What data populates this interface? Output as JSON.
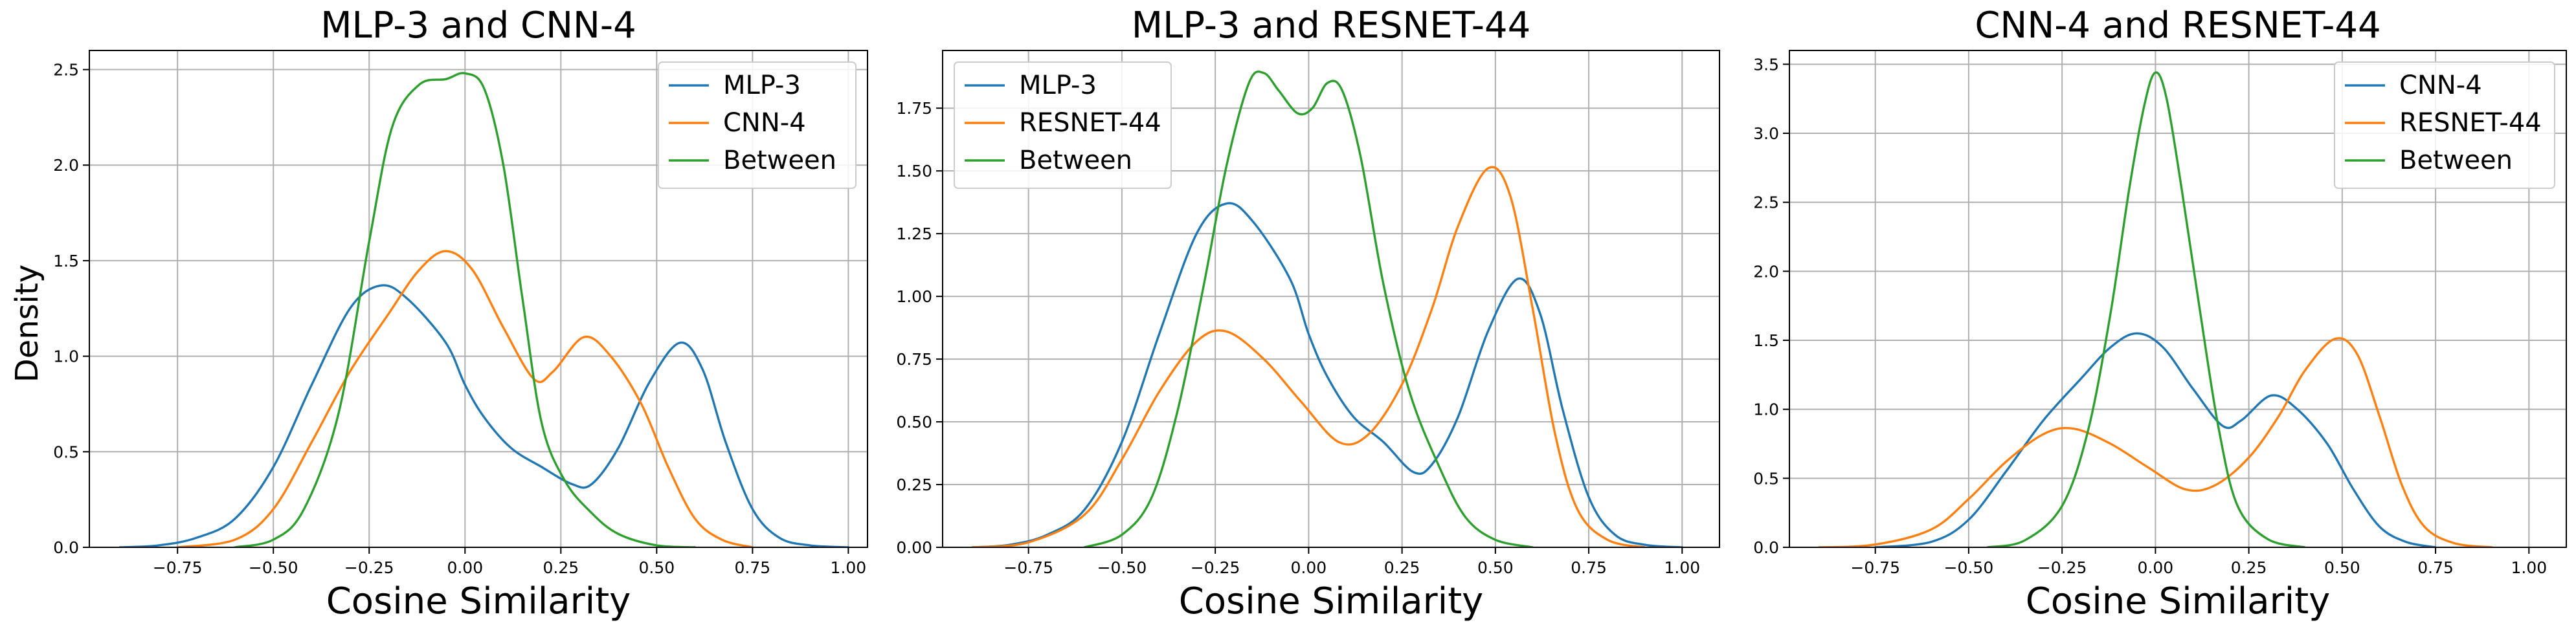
{
  "figure": {
    "ylabel": "Density",
    "xlabel": "Cosine Similarity"
  },
  "colors": {
    "blue": "#1f77b4",
    "orange": "#ff7f0e",
    "green": "#2ca02c",
    "grid": "#b0b0b0",
    "axis": "#000000"
  },
  "chart_data": [
    {
      "type": "line",
      "title": "MLP-3 and CNN-4",
      "xlabel": "Cosine Similarity",
      "ylabel": "Density",
      "xlim": [
        -0.98,
        1.05
      ],
      "ylim": [
        0,
        2.6
      ],
      "xticks": [
        -0.75,
        -0.5,
        -0.25,
        0.0,
        0.25,
        0.5,
        0.75,
        1.0
      ],
      "xtick_labels": [
        "−0.75",
        "−0.50",
        "−0.25",
        "0.00",
        "0.25",
        "0.50",
        "0.75",
        "1.00"
      ],
      "yticks": [
        0,
        0.5,
        1.0,
        1.5,
        2.0,
        2.5
      ],
      "ytick_labels": [
        "0.0",
        "0.5",
        "1.0",
        "1.5",
        "2.0",
        "2.5"
      ],
      "grid": true,
      "legend_position": "upper right",
      "series": [
        {
          "name": "MLP-3",
          "color": "blue",
          "points": [
            [
              -0.9,
              0
            ],
            [
              -0.8,
              0.01
            ],
            [
              -0.7,
              0.05
            ],
            [
              -0.6,
              0.15
            ],
            [
              -0.5,
              0.42
            ],
            [
              -0.4,
              0.85
            ],
            [
              -0.3,
              1.25
            ],
            [
              -0.22,
              1.37
            ],
            [
              -0.15,
              1.3
            ],
            [
              -0.05,
              1.07
            ],
            [
              0.0,
              0.85
            ],
            [
              0.05,
              0.68
            ],
            [
              0.12,
              0.52
            ],
            [
              0.2,
              0.42
            ],
            [
              0.28,
              0.33
            ],
            [
              0.33,
              0.33
            ],
            [
              0.4,
              0.52
            ],
            [
              0.48,
              0.86
            ],
            [
              0.56,
              1.07
            ],
            [
              0.62,
              0.93
            ],
            [
              0.68,
              0.55
            ],
            [
              0.75,
              0.2
            ],
            [
              0.82,
              0.05
            ],
            [
              0.9,
              0.01
            ],
            [
              1.0,
              0
            ]
          ]
        },
        {
          "name": "CNN-4",
          "color": "orange",
          "points": [
            [
              -0.75,
              0
            ],
            [
              -0.6,
              0.04
            ],
            [
              -0.5,
              0.2
            ],
            [
              -0.4,
              0.55
            ],
            [
              -0.3,
              0.92
            ],
            [
              -0.2,
              1.22
            ],
            [
              -0.12,
              1.45
            ],
            [
              -0.05,
              1.55
            ],
            [
              0.02,
              1.45
            ],
            [
              0.1,
              1.15
            ],
            [
              0.18,
              0.88
            ],
            [
              0.23,
              0.92
            ],
            [
              0.31,
              1.1
            ],
            [
              0.38,
              1.0
            ],
            [
              0.46,
              0.75
            ],
            [
              0.53,
              0.42
            ],
            [
              0.6,
              0.15
            ],
            [
              0.67,
              0.04
            ],
            [
              0.75,
              0
            ]
          ]
        },
        {
          "name": "Between",
          "color": "green",
          "points": [
            [
              -0.6,
              0
            ],
            [
              -0.5,
              0.04
            ],
            [
              -0.42,
              0.2
            ],
            [
              -0.33,
              0.7
            ],
            [
              -0.25,
              1.6
            ],
            [
              -0.19,
              2.2
            ],
            [
              -0.12,
              2.42
            ],
            [
              -0.05,
              2.45
            ],
            [
              0.0,
              2.48
            ],
            [
              0.05,
              2.4
            ],
            [
              0.1,
              2.0
            ],
            [
              0.15,
              1.3
            ],
            [
              0.2,
              0.65
            ],
            [
              0.26,
              0.35
            ],
            [
              0.33,
              0.18
            ],
            [
              0.4,
              0.07
            ],
            [
              0.5,
              0.01
            ],
            [
              0.6,
              0
            ]
          ]
        }
      ]
    },
    {
      "type": "line",
      "title": "MLP-3 and RESNET-44",
      "xlabel": "Cosine Similarity",
      "ylabel": "",
      "xlim": [
        -0.98,
        1.1
      ],
      "ylim": [
        0,
        1.98
      ],
      "xticks": [
        -0.75,
        -0.5,
        -0.25,
        0.0,
        0.25,
        0.5,
        0.75,
        1.0
      ],
      "xtick_labels": [
        "−0.75",
        "−0.50",
        "−0.25",
        "0.00",
        "0.25",
        "0.50",
        "0.75",
        "1.00"
      ],
      "yticks": [
        0,
        0.25,
        0.5,
        0.75,
        1.0,
        1.25,
        1.5,
        1.75
      ],
      "ytick_labels": [
        "0.00",
        "0.25",
        "0.50",
        "0.75",
        "1.00",
        "1.25",
        "1.50",
        "1.75"
      ],
      "grid": true,
      "legend_position": "upper left",
      "series": [
        {
          "name": "MLP-3",
          "color": "blue",
          "points": [
            [
              -0.9,
              0
            ],
            [
              -0.8,
              0.01
            ],
            [
              -0.7,
              0.05
            ],
            [
              -0.6,
              0.15
            ],
            [
              -0.5,
              0.42
            ],
            [
              -0.4,
              0.85
            ],
            [
              -0.3,
              1.25
            ],
            [
              -0.22,
              1.37
            ],
            [
              -0.15,
              1.3
            ],
            [
              -0.05,
              1.07
            ],
            [
              0.0,
              0.85
            ],
            [
              0.05,
              0.68
            ],
            [
              0.12,
              0.52
            ],
            [
              0.2,
              0.42
            ],
            [
              0.28,
              0.3
            ],
            [
              0.33,
              0.33
            ],
            [
              0.4,
              0.52
            ],
            [
              0.48,
              0.86
            ],
            [
              0.56,
              1.07
            ],
            [
              0.62,
              0.93
            ],
            [
              0.68,
              0.55
            ],
            [
              0.75,
              0.2
            ],
            [
              0.82,
              0.05
            ],
            [
              0.9,
              0.01
            ],
            [
              1.0,
              0
            ]
          ]
        },
        {
          "name": "RESNET-44",
          "color": "orange",
          "points": [
            [
              -0.9,
              0
            ],
            [
              -0.75,
              0.02
            ],
            [
              -0.6,
              0.13
            ],
            [
              -0.5,
              0.35
            ],
            [
              -0.4,
              0.62
            ],
            [
              -0.3,
              0.82
            ],
            [
              -0.22,
              0.86
            ],
            [
              -0.12,
              0.75
            ],
            [
              -0.02,
              0.58
            ],
            [
              0.08,
              0.42
            ],
            [
              0.16,
              0.45
            ],
            [
              0.25,
              0.65
            ],
            [
              0.33,
              0.95
            ],
            [
              0.4,
              1.28
            ],
            [
              0.48,
              1.51
            ],
            [
              0.54,
              1.4
            ],
            [
              0.6,
              0.95
            ],
            [
              0.66,
              0.45
            ],
            [
              0.72,
              0.15
            ],
            [
              0.8,
              0.03
            ],
            [
              0.9,
              0
            ]
          ]
        },
        {
          "name": "Between",
          "color": "green",
          "points": [
            [
              -0.6,
              0
            ],
            [
              -0.5,
              0.05
            ],
            [
              -0.42,
              0.2
            ],
            [
              -0.35,
              0.55
            ],
            [
              -0.28,
              1.05
            ],
            [
              -0.22,
              1.52
            ],
            [
              -0.16,
              1.85
            ],
            [
              -0.12,
              1.89
            ],
            [
              -0.08,
              1.82
            ],
            [
              -0.03,
              1.73
            ],
            [
              0.01,
              1.75
            ],
            [
              0.05,
              1.85
            ],
            [
              0.09,
              1.82
            ],
            [
              0.14,
              1.55
            ],
            [
              0.2,
              1.05
            ],
            [
              0.27,
              0.62
            ],
            [
              0.35,
              0.32
            ],
            [
              0.42,
              0.12
            ],
            [
              0.5,
              0.03
            ],
            [
              0.6,
              0
            ]
          ]
        }
      ]
    },
    {
      "type": "line",
      "title": "CNN-4 and RESNET-44",
      "xlabel": "Cosine Similarity",
      "ylabel": "",
      "xlim": [
        -0.98,
        1.1
      ],
      "ylim": [
        0,
        3.6
      ],
      "xticks": [
        -0.75,
        -0.5,
        -0.25,
        0.0,
        0.25,
        0.5,
        0.75,
        1.0
      ],
      "xtick_labels": [
        "−0.75",
        "−0.50",
        "−0.25",
        "0.00",
        "0.25",
        "0.50",
        "0.75",
        "1.00"
      ],
      "yticks": [
        0,
        0.5,
        1.0,
        1.5,
        2.0,
        2.5,
        3.0,
        3.5
      ],
      "ytick_labels": [
        "0.0",
        "0.5",
        "1.0",
        "1.5",
        "2.0",
        "2.5",
        "3.0",
        "3.5"
      ],
      "grid": true,
      "legend_position": "upper right",
      "series": [
        {
          "name": "CNN-4",
          "color": "blue",
          "points": [
            [
              -0.75,
              0
            ],
            [
              -0.6,
              0.04
            ],
            [
              -0.5,
              0.2
            ],
            [
              -0.4,
              0.55
            ],
            [
              -0.3,
              0.92
            ],
            [
              -0.2,
              1.22
            ],
            [
              -0.12,
              1.45
            ],
            [
              -0.05,
              1.55
            ],
            [
              0.02,
              1.45
            ],
            [
              0.1,
              1.15
            ],
            [
              0.18,
              0.88
            ],
            [
              0.23,
              0.92
            ],
            [
              0.31,
              1.1
            ],
            [
              0.38,
              1.0
            ],
            [
              0.46,
              0.75
            ],
            [
              0.53,
              0.42
            ],
            [
              0.6,
              0.15
            ],
            [
              0.67,
              0.04
            ],
            [
              0.75,
              0
            ]
          ]
        },
        {
          "name": "RESNET-44",
          "color": "orange",
          "points": [
            [
              -0.9,
              0
            ],
            [
              -0.75,
              0.02
            ],
            [
              -0.6,
              0.13
            ],
            [
              -0.5,
              0.35
            ],
            [
              -0.4,
              0.62
            ],
            [
              -0.3,
              0.82
            ],
            [
              -0.22,
              0.86
            ],
            [
              -0.12,
              0.75
            ],
            [
              -0.02,
              0.58
            ],
            [
              0.08,
              0.42
            ],
            [
              0.16,
              0.45
            ],
            [
              0.25,
              0.65
            ],
            [
              0.33,
              0.95
            ],
            [
              0.4,
              1.28
            ],
            [
              0.48,
              1.51
            ],
            [
              0.54,
              1.4
            ],
            [
              0.6,
              0.95
            ],
            [
              0.66,
              0.45
            ],
            [
              0.72,
              0.15
            ],
            [
              0.8,
              0.03
            ],
            [
              0.9,
              0
            ]
          ]
        },
        {
          "name": "Between",
          "color": "green",
          "points": [
            [
              -0.45,
              0
            ],
            [
              -0.35,
              0.05
            ],
            [
              -0.25,
              0.3
            ],
            [
              -0.18,
              0.85
            ],
            [
              -0.12,
              1.7
            ],
            [
              -0.07,
              2.6
            ],
            [
              -0.03,
              3.2
            ],
            [
              0.0,
              3.44
            ],
            [
              0.03,
              3.25
            ],
            [
              0.07,
              2.6
            ],
            [
              0.12,
              1.7
            ],
            [
              0.17,
              0.85
            ],
            [
              0.22,
              0.3
            ],
            [
              0.3,
              0.06
            ],
            [
              0.4,
              0
            ]
          ]
        }
      ]
    }
  ]
}
